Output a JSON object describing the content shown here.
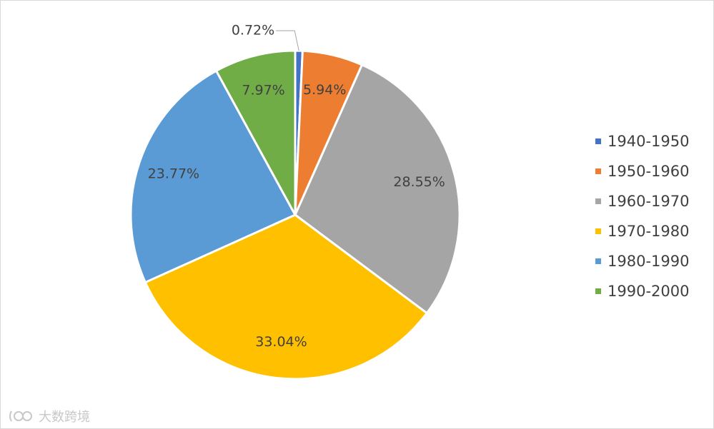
{
  "chart_data": {
    "type": "pie",
    "categories": [
      "1940-1950",
      "1950-1960",
      "1960-1970",
      "1970-1980",
      "1980-1990",
      "1990-2000"
    ],
    "values": [
      0.72,
      5.94,
      28.55,
      33.04,
      23.77,
      7.97
    ],
    "data_labels": [
      "0.72%",
      "5.94%",
      "28.55%",
      "33.04%",
      "23.77%",
      "7.97%"
    ],
    "colors": [
      "#4472C4",
      "#ED7D31",
      "#A5A5A5",
      "#FFC000",
      "#5B9BD5",
      "#70AD47"
    ],
    "legend_position": "right",
    "title": ""
  },
  "watermark": {
    "text": "大数跨境"
  }
}
